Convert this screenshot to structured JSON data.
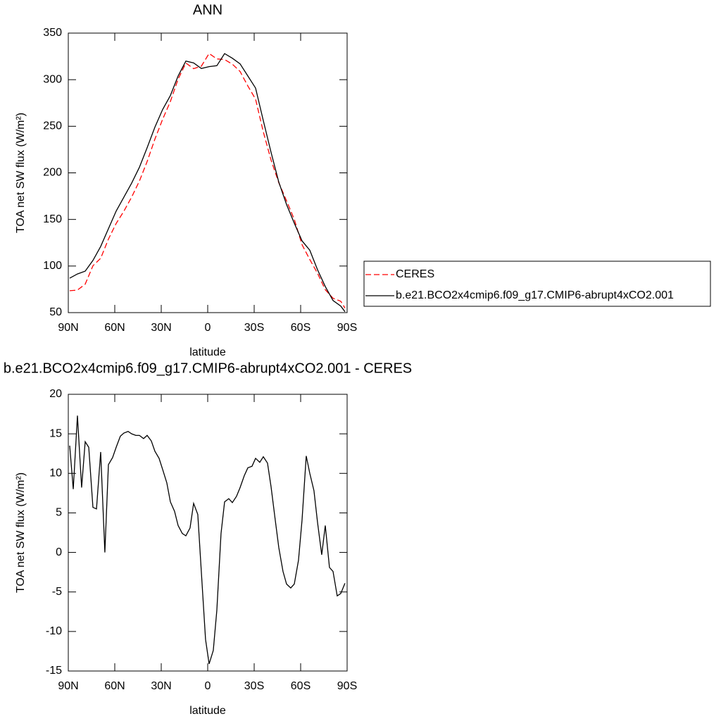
{
  "chart_data": [
    {
      "type": "line",
      "title": "ANN",
      "xlabel": "latitude",
      "ylabel": "TOA net SW flux (W/m²)",
      "x": [
        89.1,
        84.1,
        79.1,
        74.1,
        69.1,
        64.1,
        59.1,
        54.1,
        49.1,
        44.1,
        39.1,
        34.1,
        29.1,
        24.1,
        19.1,
        14.1,
        9.1,
        4.1,
        -0.9,
        -5.9,
        -10.9,
        -15.9,
        -20.9,
        -25.9,
        -30.9,
        -35.9,
        -40.9,
        -45.9,
        -50.9,
        -55.9,
        -60.9,
        -65.9,
        -70.9,
        -75.9,
        -80.9,
        -85.9,
        -88.6
      ],
      "series": [
        {
          "name": "CERES",
          "color": "#ff0000",
          "linestyle": "dashed",
          "values": [
            73.5,
            74.2,
            80.5,
            100.3,
            108.3,
            128.9,
            145.7,
            158.9,
            174,
            191.2,
            212.2,
            236.2,
            257.5,
            276.6,
            300.6,
            317.9,
            311.8,
            314.5,
            328.1,
            322.3,
            321.6,
            316.7,
            308.8,
            293.3,
            279.1,
            243.9,
            213.7,
            189.4,
            170,
            150,
            122.9,
            107,
            92.2,
            74.6,
            65.4,
            62.2,
            54.9
          ]
        },
        {
          "name": "b.e21.BCO2x4cmip6.f09_g17.CMIP6-abrupt4xCO2.001",
          "color": "#000000",
          "linestyle": "solid",
          "values": [
            87,
            91.5,
            94.5,
            106,
            121,
            140,
            159,
            174,
            189,
            206,
            227,
            249,
            268,
            283,
            304,
            320,
            318,
            312,
            314,
            315,
            328,
            323,
            317,
            304,
            291,
            256,
            222,
            190,
            166,
            146,
            127,
            117,
            96,
            78,
            63,
            57,
            51
          ]
        }
      ],
      "xlim": [
        90,
        -90
      ],
      "xticks": [
        {
          "value": 90,
          "label": "90N"
        },
        {
          "value": 60,
          "label": "60N"
        },
        {
          "value": 30,
          "label": "30N"
        },
        0,
        {
          "value": -30,
          "label": "30S"
        },
        {
          "value": -60,
          "label": "60S"
        },
        {
          "value": -90,
          "label": "90S"
        }
      ],
      "ylim": [
        50,
        350
      ],
      "yticks": [
        50,
        100,
        150,
        200,
        250,
        300,
        350
      ],
      "legend": "right"
    },
    {
      "type": "line",
      "title": "b.e21.BCO2x4cmip6.f09_g17.CMIP6-abrupt4xCO2.001 - CERES",
      "xlabel": "latitude",
      "ylabel": "TOA net SW flux (W/m²)",
      "x": [
        89.1,
        86.8,
        84.1,
        81.4,
        79.1,
        76.8,
        74.1,
        71.8,
        69.1,
        66.4,
        64.1,
        61.4,
        59.1,
        56.4,
        54.1,
        51.4,
        49.1,
        46.4,
        44.1,
        41.4,
        39.1,
        36.4,
        34.1,
        31.4,
        29.1,
        26.4,
        24.1,
        21.4,
        19.1,
        16.4,
        14.1,
        11.4,
        9.1,
        6.4,
        4.1,
        1.4,
        -0.9,
        -3.6,
        -5.9,
        -8.6,
        -10.9,
        -13.6,
        -15.9,
        -18.6,
        -20.9,
        -23.6,
        -25.9,
        -28.6,
        -30.9,
        -33.6,
        -35.9,
        -38.6,
        -40.9,
        -43.6,
        -45.9,
        -48.6,
        -50.9,
        -53.6,
        -55.9,
        -58.6,
        -60.9,
        -63.6,
        -65.9,
        -68.6,
        -70.9,
        -73.6,
        -75.9,
        -78.6,
        -80.9,
        -83.6,
        -85.9,
        -88.6
      ],
      "color": "#000000",
      "values": [
        13.5,
        8.0,
        17.3,
        8.2,
        14.0,
        13.3,
        5.7,
        5.5,
        12.7,
        0.0,
        11.1,
        12.0,
        13.3,
        14.7,
        15.1,
        15.3,
        15.0,
        14.8,
        14.8,
        14.4,
        14.8,
        14.1,
        12.8,
        11.9,
        10.5,
        8.8,
        6.4,
        5.2,
        3.4,
        2.4,
        2.1,
        3.1,
        6.2,
        4.8,
        -2.5,
        -11.0,
        -14.1,
        -12.4,
        -7.3,
        2.4,
        6.4,
        6.8,
        6.3,
        7.1,
        8.2,
        9.7,
        10.7,
        10.9,
        11.9,
        11.4,
        12.1,
        11.3,
        8.3,
        4.1,
        0.6,
        -2.4,
        -4.0,
        -4.5,
        -4.0,
        -1.0,
        4.1,
        12.2,
        10.0,
        7.8,
        3.8,
        -0.3,
        3.4,
        -1.9,
        -2.4,
        -5.5,
        -5.2,
        -3.9
      ],
      "xlim": [
        90,
        -90
      ],
      "xticks": [
        {
          "value": 90,
          "label": "90N"
        },
        {
          "value": 60,
          "label": "60N"
        },
        {
          "value": 30,
          "label": "30N"
        },
        0,
        {
          "value": -30,
          "label": "30S"
        },
        {
          "value": -60,
          "label": "60S"
        },
        {
          "value": -90,
          "label": "90S"
        }
      ],
      "ylim": [
        -15,
        20
      ],
      "yticks": [
        -15,
        -10,
        -5,
        0,
        5,
        10,
        15,
        20
      ]
    }
  ]
}
